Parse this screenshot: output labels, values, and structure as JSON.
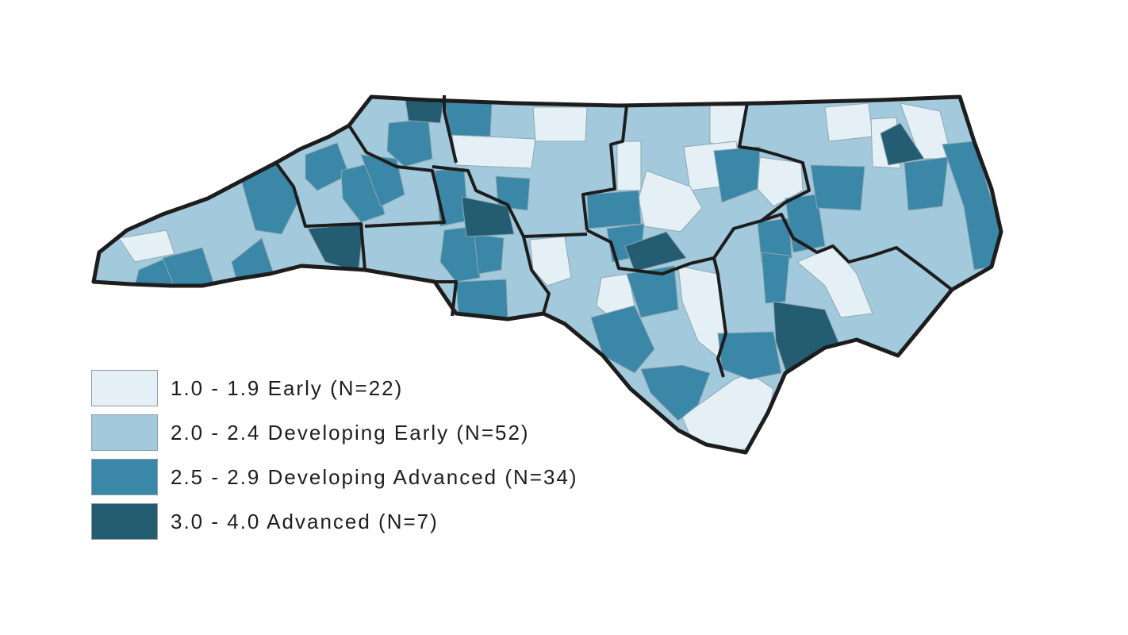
{
  "colors": {
    "early": "#e4f0f6",
    "developing_early": "#a3cadc",
    "developing_advanced": "#3a87a8",
    "advanced": "#245d72",
    "county_border": "#8fa6b0",
    "region_border": "#1d1d1d"
  },
  "legend": {
    "items": [
      {
        "label": "1.0 - 1.9 Early (N=22)",
        "color": "#e4f0f6"
      },
      {
        "label": "2.0 - 2.4 Developing Early (N=52)",
        "color": "#a3cadc"
      },
      {
        "label": "2.5 - 2.9 Developing Advanced (N=34)",
        "color": "#3a87a8"
      },
      {
        "label": "3.0 - 4.0 Advanced (N=7)",
        "color": "#245d72"
      }
    ]
  }
}
